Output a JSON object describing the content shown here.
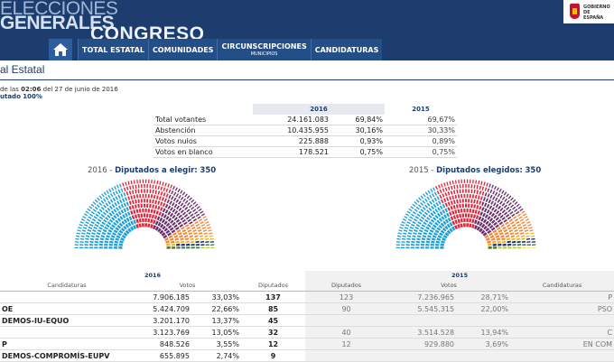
{
  "header": {
    "title_line1": "ELECCIONES",
    "title_line2": "GENERALES",
    "title_line3": "CONGRESO",
    "gov_logo_text": [
      "GOBIERNO",
      "DE",
      "ESPAÑA"
    ]
  },
  "nav": {
    "items": [
      {
        "label": "TOTAL ESTATAL",
        "sub": ""
      },
      {
        "label": "COMUNIDADES",
        "sub": ""
      },
      {
        "label": "CIRCUNSCRIPCIONES",
        "sub": "MUNICIPIOS"
      },
      {
        "label": "CANDIDATURAS",
        "sub": ""
      }
    ]
  },
  "page": {
    "title": "al Estatal",
    "datetime_prefix": "de las",
    "time": "02:06",
    "date_suffix": "del 27 de junio de 2016",
    "escrutado": "utado 100%"
  },
  "summary": {
    "year_current": "2016",
    "year_previous": "2015",
    "rows": [
      {
        "label": "Total votantes",
        "value": "24.161.083",
        "pct": "69,84%",
        "prev_pct": "69,67%"
      },
      {
        "label": "Abstención",
        "value": "10.435.955",
        "pct": "30,16%",
        "prev_pct": "30,33%"
      },
      {
        "label": "Votos nulos",
        "value": "225.888",
        "pct": "0,93%",
        "prev_pct": "0,89%"
      },
      {
        "label": "Votos en blanco",
        "value": "178.521",
        "pct": "0,75%",
        "prev_pct": "0,75%"
      }
    ]
  },
  "hemicycle_2016": {
    "year": "2016",
    "sep": " - ",
    "label": "Diputados a elegir:",
    "total": "350",
    "seats": [
      137,
      85,
      71,
      32,
      9,
      8,
      5,
      2,
      1
    ]
  },
  "hemicycle_2015": {
    "year": "2015",
    "sep": " - ",
    "label": "Diputados elegidos:",
    "total": "350",
    "seats": [
      123,
      90,
      69,
      40,
      9,
      8,
      6,
      2,
      2,
      1
    ]
  },
  "colors": {
    "pp": "#1b9fd7",
    "psoe": "#e1253b",
    "podemos": "#6a2f6b",
    "cs": "#f58634",
    "erc": "#f7b11e",
    "cdc": "#1a2f6c",
    "pnv": "#3c7a3a",
    "bildu": "#b5cd2f",
    "cc": "#ffe36b",
    "other": "#9c4f9c"
  },
  "results": {
    "year_current": "2016",
    "year_previous": "2015",
    "headers": {
      "candidaturas": "Candidaturas",
      "votos": "Votos",
      "diputados": "Diputados",
      "diputados_prev": "Diputados",
      "votos_prev": "Votos",
      "candidaturas_prev": "Candidaturas"
    },
    "rows": [
      {
        "party": "",
        "votes": "7.906.185",
        "pct": "33,03%",
        "seats": "137",
        "prev_seats": "123",
        "prev_votes": "7.236.965",
        "prev_pct": "28,71%",
        "prev_party": "P"
      },
      {
        "party": "OE",
        "votes": "5.424.709",
        "pct": "22,66%",
        "seats": "85",
        "prev_seats": "90",
        "prev_votes": "5.545.315",
        "prev_pct": "22,00%",
        "prev_party": "PSO"
      },
      {
        "party": "DEMOS-IU-EQUO",
        "votes": "3.201.170",
        "pct": "13,37%",
        "seats": "45",
        "prev_seats": "",
        "prev_votes": "",
        "prev_pct": "",
        "prev_party": ""
      },
      {
        "party": "",
        "votes": "3.123.769",
        "pct": "13,05%",
        "seats": "32",
        "prev_seats": "40",
        "prev_votes": "3.514.528",
        "prev_pct": "13,94%",
        "prev_party": "C"
      },
      {
        "party": "P",
        "votes": "848.526",
        "pct": "3,55%",
        "seats": "12",
        "prev_seats": "12",
        "prev_votes": "929.880",
        "prev_pct": "3,69%",
        "prev_party": "EN COM"
      },
      {
        "party": "DEMOS-COMPROMÍS-EUPV",
        "votes": "655.895",
        "pct": "2,74%",
        "seats": "9",
        "prev_seats": "",
        "prev_votes": "",
        "prev_pct": "",
        "prev_party": ""
      }
    ]
  }
}
